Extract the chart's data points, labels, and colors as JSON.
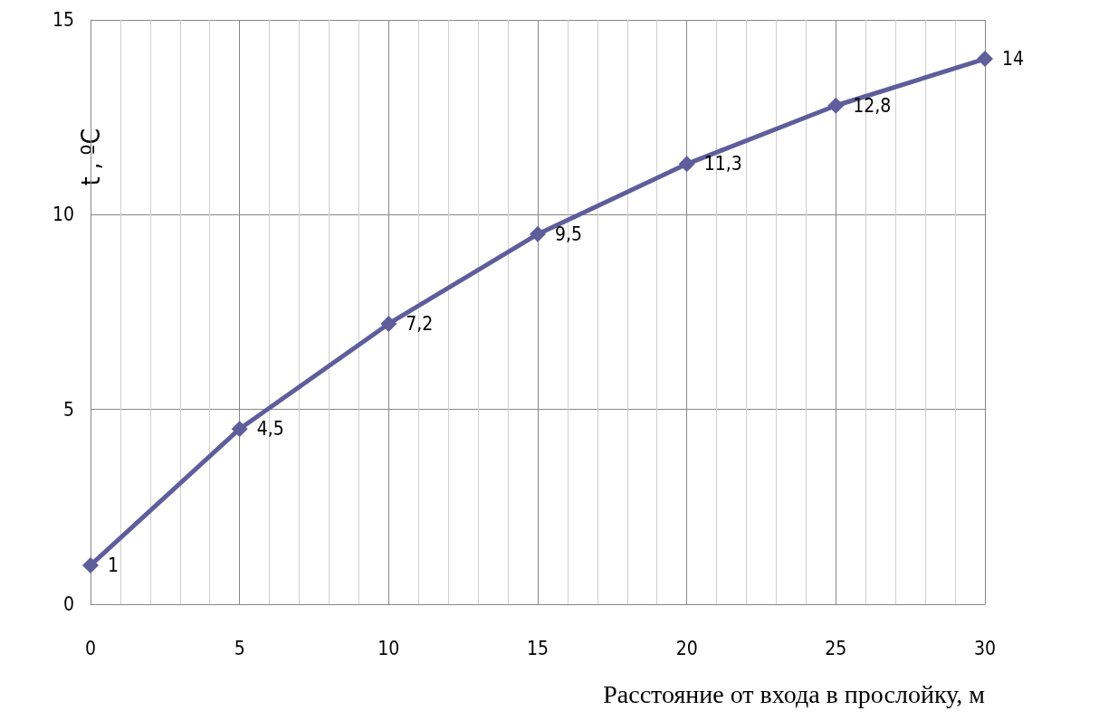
{
  "chart_data": {
    "type": "line",
    "xlabel": "Расстояние от входа в прослойку, м",
    "ylabel": "t , ºC",
    "x": [
      0,
      5,
      10,
      15,
      20,
      25,
      30
    ],
    "values": [
      1,
      4.5,
      7.2,
      9.5,
      11.3,
      12.8,
      14
    ],
    "value_labels": [
      "1",
      "4,5",
      "7,2",
      "9,5",
      "11,3",
      "12,8",
      "14"
    ],
    "color": "#5f5d9b",
    "marker": "diamond",
    "line_style": "solid",
    "grid": true,
    "xlim": [
      0,
      30
    ],
    "ylim": [
      0,
      15
    ],
    "xticks": [
      0,
      {
        "value": 1,
        "label": null
      },
      {
        "value": 2,
        "label": null
      },
      {
        "value": 3,
        "label": null
      },
      {
        "value": 4,
        "label": null
      },
      5,
      {
        "value": 6,
        "label": null
      },
      {
        "value": 7,
        "label": null
      },
      {
        "value": 8,
        "label": null
      },
      {
        "value": 9,
        "label": null
      },
      10,
      {
        "value": 11,
        "label": null
      },
      {
        "value": 12,
        "label": null
      },
      {
        "value": 13,
        "label": null
      },
      {
        "value": 14,
        "label": null
      },
      15,
      {
        "value": 16,
        "label": null
      },
      {
        "value": 17,
        "label": null
      },
      {
        "value": 18,
        "label": null
      },
      {
        "value": 19,
        "label": null
      },
      20,
      {
        "value": 21,
        "label": null
      },
      {
        "value": 22,
        "label": null
      },
      {
        "value": 23,
        "label": null
      },
      {
        "value": 24,
        "label": null
      },
      25,
      {
        "value": 26,
        "label": null
      },
      {
        "value": 27,
        "label": null
      },
      {
        "value": 28,
        "label": null
      },
      {
        "value": 29,
        "label": null
      },
      30
    ],
    "yticks": [
      0,
      5,
      10,
      15
    ]
  }
}
